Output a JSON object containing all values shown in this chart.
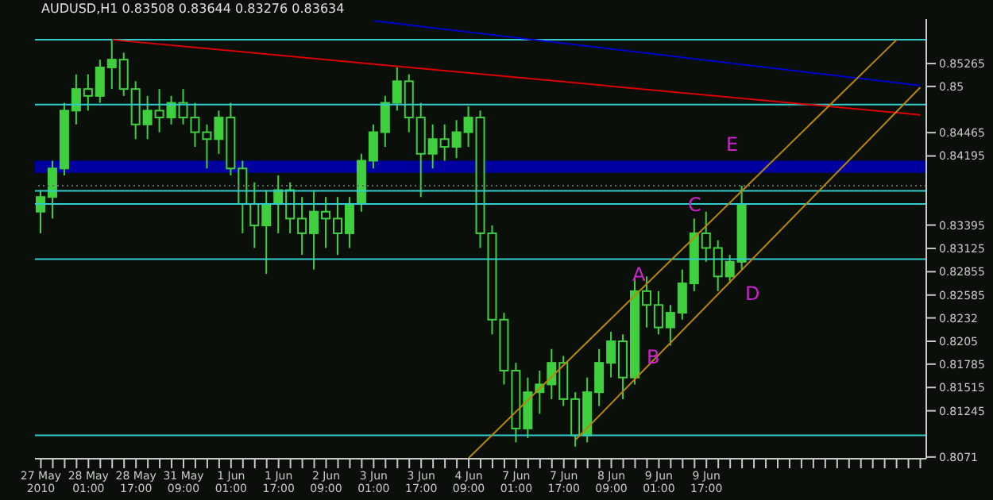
{
  "chart_data": {
    "type": "candlestick",
    "title": "AUDUSD,H1 0.83508 0.83644 0.83276 0.83634",
    "color": "#3fcf3f",
    "categories": [
      "27 May 2010",
      null,
      null,
      null,
      "28 May 01:00",
      null,
      null,
      null,
      "28 May 17:00",
      null,
      null,
      null,
      "31 May 09:00",
      null,
      null,
      null,
      "1 Jun 01:00",
      null,
      null,
      null,
      "1 Jun 17:00",
      null,
      null,
      null,
      "2 Jun 09:00",
      null,
      null,
      null,
      "3 Jun 01:00",
      null,
      null,
      null,
      "3 Jun 17:00",
      null,
      null,
      null,
      "4 Jun 09:00",
      null,
      null,
      null,
      "7 Jun 01:00",
      null,
      null,
      null,
      "7 Jun 17:00",
      null,
      null,
      null,
      "8 Jun 09:00",
      null,
      null,
      null,
      "9 Jun 01:00",
      null,
      null,
      null,
      "9 Jun 17:00",
      null,
      null,
      null,
      null,
      null,
      null,
      null,
      null,
      null,
      null,
      null,
      null,
      null,
      null,
      null,
      null,
      null,
      null
    ],
    "ohlc": [
      [
        0.8355,
        0.838,
        0.833,
        0.8372
      ],
      [
        0.8372,
        0.8414,
        0.8347,
        0.8405
      ],
      [
        0.8405,
        0.8481,
        0.8397,
        0.8472
      ],
      [
        0.8472,
        0.8514,
        0.8456,
        0.8497
      ],
      [
        0.8497,
        0.8514,
        0.8472,
        0.8489
      ],
      [
        0.8489,
        0.8531,
        0.8481,
        0.8522
      ],
      [
        0.8522,
        0.8554,
        0.8497,
        0.8531
      ],
      [
        0.8531,
        0.8539,
        0.8489,
        0.8497
      ],
      [
        0.8497,
        0.8506,
        0.8439,
        0.8456
      ],
      [
        0.8456,
        0.8489,
        0.8439,
        0.8472
      ],
      [
        0.8472,
        0.8497,
        0.8447,
        0.8464
      ],
      [
        0.8464,
        0.8489,
        0.8456,
        0.8481
      ],
      [
        0.8481,
        0.8497,
        0.8456,
        0.8464
      ],
      [
        0.8464,
        0.8481,
        0.843,
        0.8447
      ],
      [
        0.8447,
        0.8456,
        0.8405,
        0.8439
      ],
      [
        0.8439,
        0.8472,
        0.8422,
        0.8464
      ],
      [
        0.8464,
        0.8481,
        0.8397,
        0.8405
      ],
      [
        0.8405,
        0.8414,
        0.833,
        0.8364
      ],
      [
        0.8364,
        0.8389,
        0.8313,
        0.8339
      ],
      [
        0.8339,
        0.838,
        0.8283,
        0.8364
      ],
      [
        0.8364,
        0.8397,
        0.833,
        0.838
      ],
      [
        0.838,
        0.8389,
        0.833,
        0.8347
      ],
      [
        0.8347,
        0.8372,
        0.8305,
        0.833
      ],
      [
        0.833,
        0.838,
        0.8288,
        0.8355
      ],
      [
        0.8355,
        0.8372,
        0.8313,
        0.8347
      ],
      [
        0.8347,
        0.8372,
        0.8305,
        0.833
      ],
      [
        0.833,
        0.8372,
        0.8313,
        0.8364
      ],
      [
        0.8364,
        0.8422,
        0.8355,
        0.8414
      ],
      [
        0.8414,
        0.8456,
        0.8405,
        0.8447
      ],
      [
        0.8447,
        0.8489,
        0.843,
        0.8481
      ],
      [
        0.8481,
        0.8522,
        0.8472,
        0.8506
      ],
      [
        0.8506,
        0.8514,
        0.8447,
        0.8464
      ],
      [
        0.8464,
        0.8481,
        0.8372,
        0.8422
      ],
      [
        0.8422,
        0.8456,
        0.8405,
        0.8439
      ],
      [
        0.8439,
        0.8456,
        0.8414,
        0.843
      ],
      [
        0.843,
        0.8461,
        0.8417,
        0.8447
      ],
      [
        0.8447,
        0.8477,
        0.843,
        0.8464
      ],
      [
        0.8464,
        0.8472,
        0.8313,
        0.833
      ],
      [
        0.833,
        0.8339,
        0.8213,
        0.823
      ],
      [
        0.823,
        0.8238,
        0.8155,
        0.8171
      ],
      [
        0.8171,
        0.818,
        0.8088,
        0.8104
      ],
      [
        0.8104,
        0.8163,
        0.8093,
        0.8146
      ],
      [
        0.8146,
        0.8171,
        0.8121,
        0.8155
      ],
      [
        0.8155,
        0.8196,
        0.8138,
        0.818
      ],
      [
        0.818,
        0.8188,
        0.813,
        0.8138
      ],
      [
        0.8138,
        0.8146,
        0.8083,
        0.8096
      ],
      [
        0.8096,
        0.8163,
        0.8088,
        0.8146
      ],
      [
        0.8146,
        0.8196,
        0.813,
        0.818
      ],
      [
        0.818,
        0.8216,
        0.8163,
        0.8205
      ],
      [
        0.8205,
        0.8213,
        0.8138,
        0.8163
      ],
      [
        0.8163,
        0.828,
        0.8155,
        0.8263
      ],
      [
        0.8263,
        0.828,
        0.8221,
        0.8247
      ],
      [
        0.8247,
        0.8263,
        0.8213,
        0.8221
      ],
      [
        0.8221,
        0.8247,
        0.82,
        0.8238
      ],
      [
        0.8238,
        0.8288,
        0.823,
        0.8272
      ],
      [
        0.8272,
        0.8347,
        0.8263,
        0.833
      ],
      [
        0.833,
        0.8355,
        0.8297,
        0.8313
      ],
      [
        0.8313,
        0.8322,
        0.8263,
        0.828
      ],
      [
        0.828,
        0.8305,
        0.8272,
        0.8297
      ],
      [
        0.8297,
        0.8385,
        0.8288,
        0.8363
      ],
      null,
      null,
      null,
      null,
      null,
      null,
      null,
      null,
      null,
      null,
      null,
      null,
      null,
      null,
      null
    ],
    "series": [
      {
        "type": "line",
        "color": "#dd0000",
        "values": [
          null,
          null,
          null,
          null,
          null,
          null,
          0.8554,
          null,
          null,
          null,
          null,
          null,
          null,
          null,
          null,
          null,
          null,
          null,
          null,
          null,
          null,
          null,
          null,
          null,
          null,
          null,
          null,
          null,
          null,
          null,
          null,
          null,
          null,
          null,
          null,
          null,
          null,
          null,
          null,
          null,
          null,
          null,
          null,
          null,
          null,
          null,
          null,
          null,
          null,
          null,
          null,
          null,
          null,
          null,
          null,
          null,
          null,
          null,
          null,
          null,
          null,
          null,
          null,
          null,
          null,
          null,
          null,
          null,
          null,
          null,
          null,
          null,
          null,
          null,
          0.8467
        ]
      },
      {
        "type": "line",
        "color": "#0000cc",
        "values": [
          null,
          null,
          null,
          null,
          null,
          null,
          null,
          null,
          null,
          null,
          null,
          null,
          null,
          null,
          null,
          null,
          null,
          null,
          null,
          null,
          null,
          null,
          null,
          null,
          null,
          null,
          null,
          null,
          0.8576,
          null,
          null,
          null,
          null,
          null,
          null,
          null,
          null,
          null,
          null,
          null,
          null,
          null,
          null,
          null,
          null,
          null,
          null,
          null,
          null,
          null,
          null,
          null,
          null,
          null,
          null,
          null,
          null,
          null,
          null,
          null,
          null,
          null,
          null,
          null,
          null,
          null,
          null,
          null,
          null,
          null,
          null,
          null,
          null,
          null,
          0.8501
        ]
      },
      {
        "type": "line",
        "color": "#b8860b",
        "values": [
          null,
          null,
          null,
          null,
          null,
          null,
          null,
          null,
          null,
          null,
          null,
          null,
          null,
          null,
          null,
          null,
          null,
          null,
          null,
          null,
          null,
          null,
          null,
          null,
          null,
          null,
          null,
          null,
          null,
          null,
          null,
          null,
          null,
          null,
          null,
          null,
          0.807,
          null,
          null,
          null,
          null,
          null,
          null,
          null,
          null,
          null,
          null,
          null,
          null,
          null,
          null,
          null,
          null,
          null,
          null,
          null,
          null,
          null,
          null,
          null,
          null,
          null,
          null,
          null,
          null,
          null,
          null,
          null,
          null,
          null,
          null,
          null,
          0.8554,
          null,
          null
        ]
      },
      {
        "type": "line",
        "color": "#b8860b",
        "values": [
          null,
          null,
          null,
          null,
          null,
          null,
          null,
          null,
          null,
          null,
          null,
          null,
          null,
          null,
          null,
          null,
          null,
          null,
          null,
          null,
          null,
          null,
          null,
          null,
          null,
          null,
          null,
          null,
          null,
          null,
          null,
          null,
          null,
          null,
          null,
          null,
          null,
          null,
          null,
          null,
          null,
          null,
          null,
          null,
          null,
          0.8091,
          null,
          null,
          null,
          null,
          null,
          null,
          null,
          null,
          null,
          null,
          null,
          null,
          null,
          null,
          null,
          null,
          null,
          null,
          null,
          null,
          null,
          null,
          null,
          null,
          null,
          null,
          null,
          null,
          0.8499
        ]
      }
    ],
    "ylim": [
      0.8069,
      0.8578
    ],
    "yticks": [
      0.8071,
      0.81245,
      0.81515,
      0.81785,
      0.8205,
      0.8232,
      0.82585,
      0.82855,
      0.83125,
      0.83395,
      0.84195,
      0.84465,
      0.85,
      0.85265
    ],
    "ref_lines": [
      {
        "axis": "y",
        "value": 0.8554,
        "color": "#33cccc"
      },
      {
        "axis": "y",
        "value": 0.8479,
        "color": "#33cccc"
      },
      {
        "axis": "y",
        "value": 0.8385,
        "color": "#666666",
        "line_style": "dotted"
      },
      {
        "axis": "y",
        "value": 0.8379,
        "color": "#33cccc"
      },
      {
        "axis": "y",
        "value": 0.8364,
        "color": "#33cccc"
      },
      {
        "axis": "y",
        "value": 0.83,
        "color": "#33cccc"
      },
      {
        "axis": "y",
        "value": 0.8096,
        "color": "#33cccc"
      }
    ],
    "bands": [
      {
        "axis": "y",
        "from": 0.84,
        "to": 0.8414,
        "color": "#0000a0"
      }
    ],
    "annotations": [
      "A",
      "B",
      "C",
      "D",
      "E"
    ]
  }
}
